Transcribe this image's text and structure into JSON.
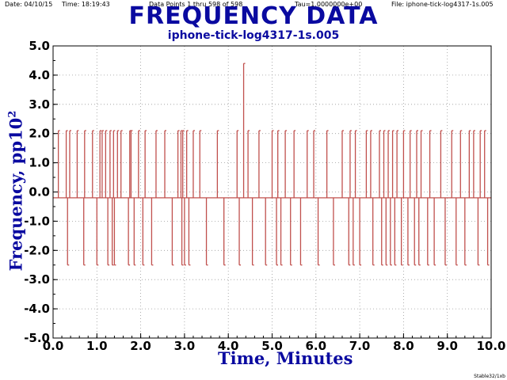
{
  "header": {
    "date": "Date: 04/10/15",
    "time": "Time: 18:19:43",
    "points": "Data Points 1 thru 598 of 598",
    "tau": "Tau=1.0000000e+00",
    "file": "File: iphone-tick-log4317-1s.005"
  },
  "footer": "Stable32/1xb",
  "chart_data": {
    "type": "line",
    "title": "FREQUENCY DATA",
    "subtitle": "iphone-tick-log4317-1s.005",
    "xlabel": "Time, Minutes",
    "ylabel_main": "Frequency, pp10",
    "ylabel_sup": "2",
    "xlim": [
      0,
      10
    ],
    "ylim": [
      -5,
      5
    ],
    "x_ticks": [
      "0.0",
      "1.0",
      "2.0",
      "3.0",
      "4.0",
      "5.0",
      "6.0",
      "7.0",
      "8.0",
      "9.0",
      "10.0"
    ],
    "y_ticks": [
      "-5.0",
      "-4.0",
      "-3.0",
      "-2.0",
      "-1.0",
      "0.0",
      "1.0",
      "2.0",
      "3.0",
      "4.0",
      "5.0"
    ],
    "grid": true,
    "baseline": -0.2,
    "series": [
      {
        "color": "#c0504d",
        "spikes": [
          {
            "x": 0.12,
            "y": 2.1
          },
          {
            "x": 0.3,
            "y": 2.1
          },
          {
            "x": 0.33,
            "y": -2.5
          },
          {
            "x": 0.38,
            "y": 2.1
          },
          {
            "x": 0.55,
            "y": 2.1
          },
          {
            "x": 0.7,
            "y": -2.5
          },
          {
            "x": 0.72,
            "y": 2.1
          },
          {
            "x": 0.9,
            "y": 2.1
          },
          {
            "x": 1.0,
            "y": -2.5
          },
          {
            "x": 1.07,
            "y": 2.1
          },
          {
            "x": 1.12,
            "y": 2.1
          },
          {
            "x": 1.2,
            "y": 2.1
          },
          {
            "x": 1.25,
            "y": -2.5
          },
          {
            "x": 1.3,
            "y": 2.1
          },
          {
            "x": 1.35,
            "y": -2.5
          },
          {
            "x": 1.38,
            "y": 2.1
          },
          {
            "x": 1.4,
            "y": -2.5
          },
          {
            "x": 1.47,
            "y": 2.1
          },
          {
            "x": 1.55,
            "y": 2.1
          },
          {
            "x": 1.72,
            "y": -2.5
          },
          {
            "x": 1.75,
            "y": 2.1
          },
          {
            "x": 1.78,
            "y": 2.1
          },
          {
            "x": 1.85,
            "y": -2.5
          },
          {
            "x": 1.95,
            "y": 2.1
          },
          {
            "x": 2.05,
            "y": -2.5
          },
          {
            "x": 2.1,
            "y": 2.1
          },
          {
            "x": 2.25,
            "y": -2.5
          },
          {
            "x": 2.35,
            "y": 2.1
          },
          {
            "x": 2.55,
            "y": 2.1
          },
          {
            "x": 2.72,
            "y": -2.5
          },
          {
            "x": 2.85,
            "y": 2.1
          },
          {
            "x": 2.92,
            "y": 2.1
          },
          {
            "x": 2.94,
            "y": -2.5
          },
          {
            "x": 2.96,
            "y": 2.1
          },
          {
            "x": 3.0,
            "y": -2.5
          },
          {
            "x": 3.05,
            "y": 2.1
          },
          {
            "x": 3.1,
            "y": -2.5
          },
          {
            "x": 3.2,
            "y": 2.1
          },
          {
            "x": 3.35,
            "y": 2.1
          },
          {
            "x": 3.5,
            "y": -2.5
          },
          {
            "x": 3.75,
            "y": 2.1
          },
          {
            "x": 3.9,
            "y": -2.5
          },
          {
            "x": 4.2,
            "y": 2.1
          },
          {
            "x": 4.25,
            "y": -2.5
          },
          {
            "x": 4.35,
            "y": 4.4
          },
          {
            "x": 4.45,
            "y": 2.1
          },
          {
            "x": 4.55,
            "y": -2.5
          },
          {
            "x": 4.7,
            "y": 2.1
          },
          {
            "x": 4.85,
            "y": -2.5
          },
          {
            "x": 5.0,
            "y": 2.1
          },
          {
            "x": 5.1,
            "y": -2.5
          },
          {
            "x": 5.13,
            "y": 2.1
          },
          {
            "x": 5.2,
            "y": -2.5
          },
          {
            "x": 5.3,
            "y": 2.1
          },
          {
            "x": 5.42,
            "y": -2.5
          },
          {
            "x": 5.5,
            "y": 2.1
          },
          {
            "x": 5.65,
            "y": -2.5
          },
          {
            "x": 5.8,
            "y": 2.1
          },
          {
            "x": 5.95,
            "y": 2.1
          },
          {
            "x": 6.05,
            "y": -2.5
          },
          {
            "x": 6.25,
            "y": 2.1
          },
          {
            "x": 6.4,
            "y": -2.5
          },
          {
            "x": 6.6,
            "y": 2.1
          },
          {
            "x": 6.75,
            "y": -2.5
          },
          {
            "x": 6.78,
            "y": 2.1
          },
          {
            "x": 6.85,
            "y": -2.5
          },
          {
            "x": 6.9,
            "y": 2.1
          },
          {
            "x": 7.0,
            "y": -2.5
          },
          {
            "x": 7.15,
            "y": 2.1
          },
          {
            "x": 7.25,
            "y": 2.1
          },
          {
            "x": 7.3,
            "y": -2.5
          },
          {
            "x": 7.45,
            "y": 2.1
          },
          {
            "x": 7.5,
            "y": -2.5
          },
          {
            "x": 7.55,
            "y": 2.1
          },
          {
            "x": 7.6,
            "y": -2.5
          },
          {
            "x": 7.65,
            "y": 2.1
          },
          {
            "x": 7.7,
            "y": -2.5
          },
          {
            "x": 7.75,
            "y": 2.1
          },
          {
            "x": 7.8,
            "y": -2.5
          },
          {
            "x": 7.85,
            "y": 2.1
          },
          {
            "x": 7.95,
            "y": -2.5
          },
          {
            "x": 8.0,
            "y": 2.1
          },
          {
            "x": 8.1,
            "y": -2.5
          },
          {
            "x": 8.15,
            "y": 2.1
          },
          {
            "x": 8.25,
            "y": -2.5
          },
          {
            "x": 8.3,
            "y": 2.1
          },
          {
            "x": 8.35,
            "y": -2.5
          },
          {
            "x": 8.4,
            "y": 2.1
          },
          {
            "x": 8.55,
            "y": -2.5
          },
          {
            "x": 8.6,
            "y": 2.1
          },
          {
            "x": 8.7,
            "y": -2.5
          },
          {
            "x": 8.85,
            "y": 2.1
          },
          {
            "x": 8.95,
            "y": -2.5
          },
          {
            "x": 9.1,
            "y": 2.1
          },
          {
            "x": 9.2,
            "y": -2.5
          },
          {
            "x": 9.3,
            "y": 2.1
          },
          {
            "x": 9.4,
            "y": -2.5
          },
          {
            "x": 9.5,
            "y": 2.1
          },
          {
            "x": 9.6,
            "y": 2.1
          },
          {
            "x": 9.7,
            "y": -2.5
          },
          {
            "x": 9.75,
            "y": 2.1
          },
          {
            "x": 9.85,
            "y": 2.1
          },
          {
            "x": 9.92,
            "y": -2.5
          }
        ]
      }
    ]
  }
}
